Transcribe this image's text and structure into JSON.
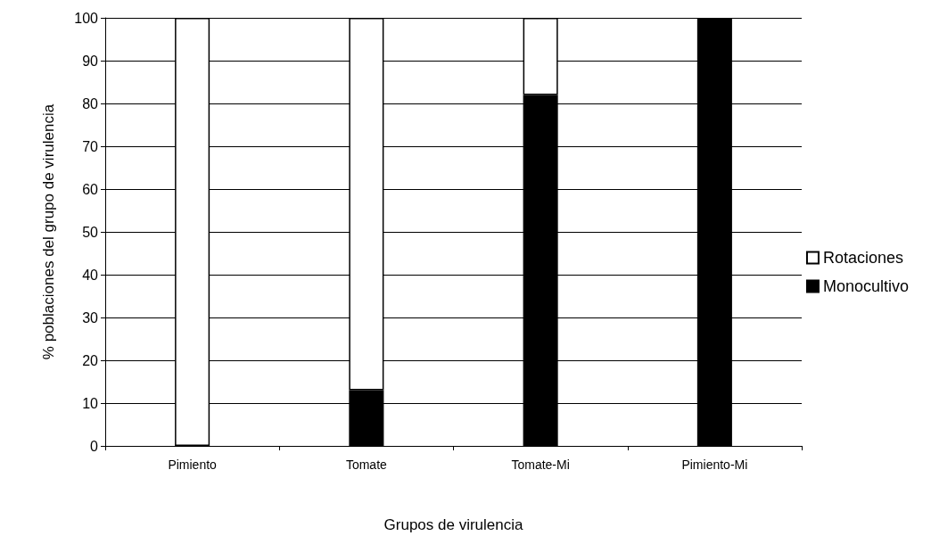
{
  "chart_data": {
    "type": "bar",
    "stacked": true,
    "xlabel": "Grupos de virulencia",
    "ylabel": "% poblaciones del grupo de virulencia",
    "categories": [
      "Pimiento",
      "Tomate",
      "Tomate-Mi",
      "Pimiento-Mi"
    ],
    "series": [
      {
        "name": "Monocultivo",
        "color": "#000000",
        "values": [
          0,
          13,
          82,
          100
        ]
      },
      {
        "name": "Rotaciones",
        "color": "#ffffff",
        "values": [
          100,
          87,
          18,
          0
        ]
      }
    ],
    "ylim": [
      0,
      100
    ],
    "yticks": [
      0,
      10,
      20,
      30,
      40,
      50,
      60,
      70,
      80,
      90,
      100
    ],
    "grid": "y",
    "legend": "right"
  }
}
